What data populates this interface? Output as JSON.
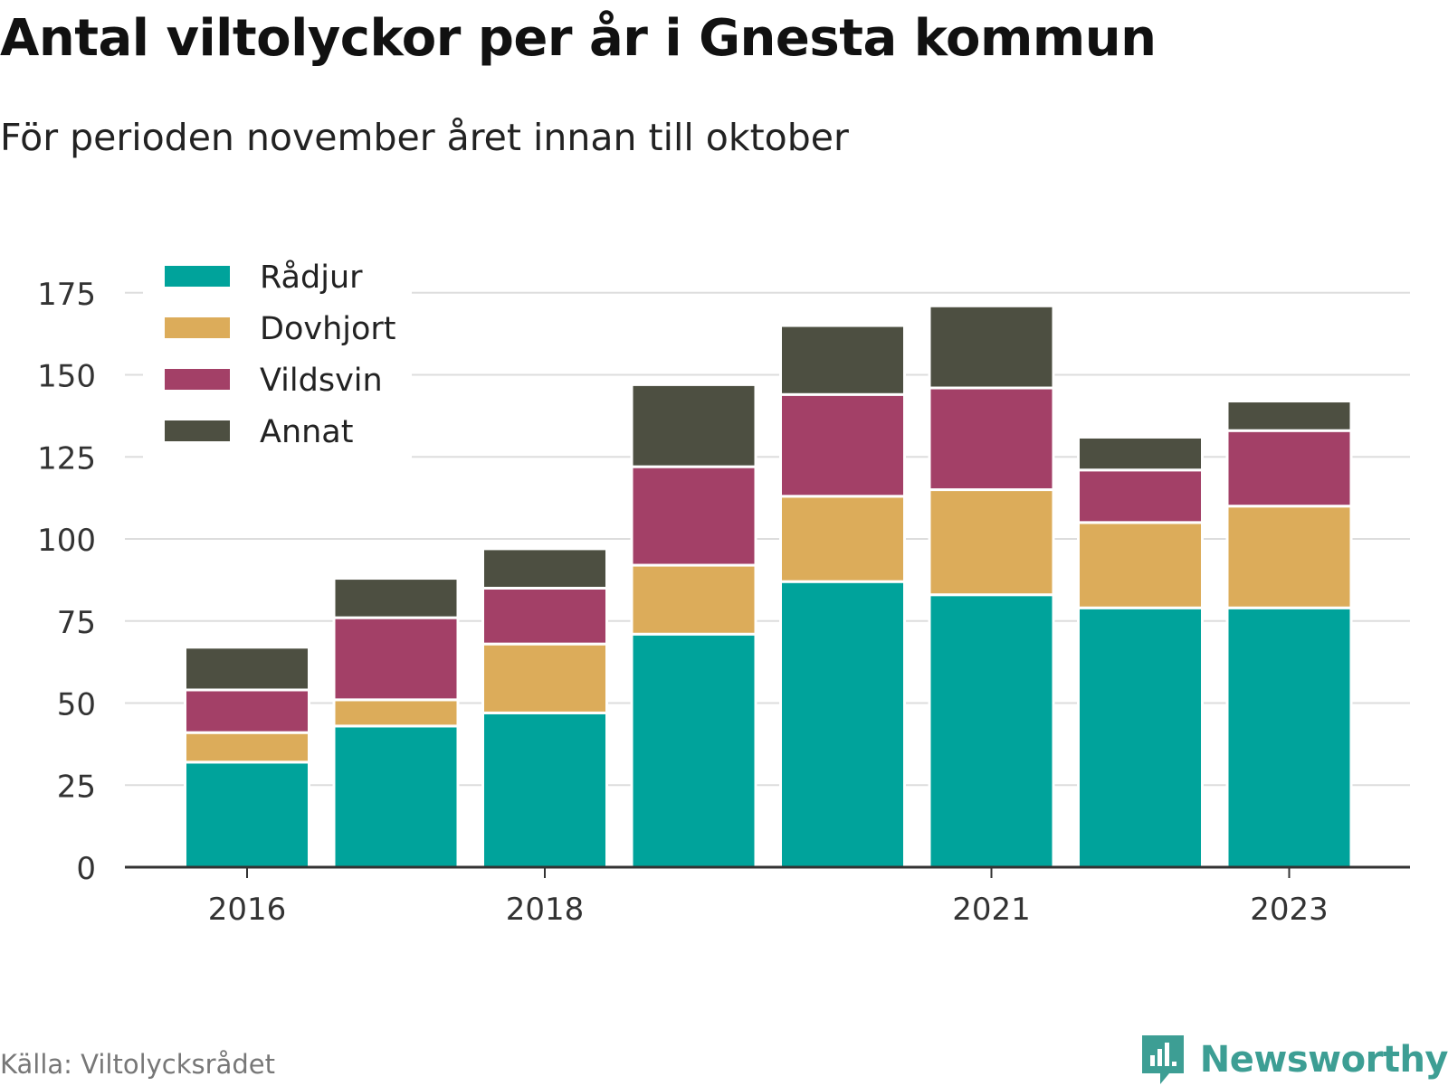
{
  "header": {
    "title": "Antal viltolyckor per år i Gnesta kommun",
    "subtitle": "För perioden november året innan till oktober"
  },
  "footer": {
    "source": "Källa: Viltolycksrådet",
    "brand": "Newsworthy"
  },
  "chart_data": {
    "type": "bar",
    "stacked": true,
    "categories": [
      "2016",
      "2017",
      "2018",
      "2019",
      "2020",
      "2021",
      "2022",
      "2023"
    ],
    "x_tick_labels": [
      "2016",
      "2018",
      "2021",
      "2023"
    ],
    "series": [
      {
        "name": "Rådjur",
        "color": "#00a39b",
        "values": [
          32,
          43,
          47,
          71,
          87,
          83,
          79,
          79
        ]
      },
      {
        "name": "Dovhjort",
        "color": "#dcac5a",
        "values": [
          9,
          8,
          21,
          21,
          26,
          32,
          26,
          31
        ]
      },
      {
        "name": "Vildsvin",
        "color": "#a34067",
        "values": [
          13,
          25,
          17,
          30,
          31,
          31,
          16,
          23
        ]
      },
      {
        "name": "Annat",
        "color": "#4d4f41",
        "values": [
          13,
          12,
          12,
          25,
          21,
          25,
          10,
          9
        ]
      }
    ],
    "yticks": [
      0,
      25,
      50,
      75,
      100,
      125,
      150,
      175
    ],
    "ylim": [
      0,
      180
    ],
    "grid": true,
    "legend": "top-left"
  }
}
